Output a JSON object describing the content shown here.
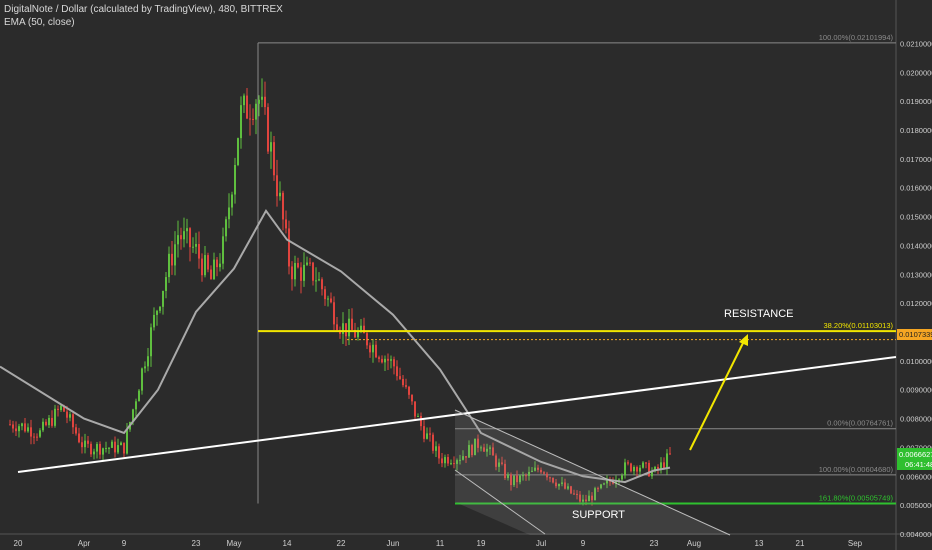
{
  "header": {
    "symbol_line": "DigitalNote / Dollar (calculated by TradingView), 480, BITTREX",
    "indicator_line": "EMA (50, close)"
  },
  "colors": {
    "background": "#2b2b2b",
    "up_candle": "#5fbf3f",
    "down_candle": "#e0443e",
    "ema": "#a9a9a9",
    "resistance": "#f2e600",
    "support": "#2fc12f",
    "trendline": "#ffffff",
    "arrow": "#f2e600",
    "current_price_tag": "#2fbf2f",
    "prev_price_tag": "#f5a623",
    "fib_line": "#8a8a8a"
  },
  "chart_data": {
    "type": "candlestick",
    "title": "DigitalNote / Dollar (calculated by TradingView), 480, BITTREX",
    "indicator": "EMA (50, close)",
    "ylim": [
      0.004,
      0.0215
    ],
    "y_ticks": [
      "0.02100000",
      "0.02000000",
      "0.01900000",
      "0.01800000",
      "0.01700000",
      "0.01600000",
      "0.01500000",
      "0.01400000",
      "0.01300000",
      "0.01200000",
      "0.01100000",
      "0.01000000",
      "0.00900000",
      "0.00800000",
      "0.00700000",
      "0.00600000",
      "0.00500000",
      "0.00400000"
    ],
    "x_ticks": [
      "20",
      "Apr",
      "9",
      "23",
      "May",
      "14",
      "22",
      "Jun",
      "11",
      "19",
      "Jul",
      "9",
      "23",
      "Aug",
      "13",
      "21",
      "Sep"
    ],
    "price_path": [
      [
        "20",
        0.0078
      ],
      [
        "24",
        0.0075
      ],
      [
        "28",
        0.0084
      ],
      [
        "Apr",
        0.007
      ],
      [
        "9",
        0.007
      ],
      [
        "13",
        0.0098
      ],
      [
        "16",
        0.012
      ],
      [
        "19",
        0.0144
      ],
      [
        "23",
        0.0138
      ],
      [
        "26",
        0.0128
      ],
      [
        "29",
        0.014
      ],
      [
        "May",
        0.0185
      ],
      [
        "5",
        0.0192
      ],
      [
        "8",
        0.0175
      ],
      [
        "10",
        0.0155
      ],
      [
        "14",
        0.0132
      ],
      [
        "18",
        0.013
      ],
      [
        "22",
        0.0112
      ],
      [
        "Jun",
        0.0108
      ],
      [
        "5",
        0.0098
      ],
      [
        "9",
        0.0078
      ],
      [
        "11",
        0.0066
      ],
      [
        "15",
        0.0067
      ],
      [
        "19",
        0.0072
      ],
      [
        "23",
        0.0058
      ],
      [
        "27",
        0.006
      ],
      [
        "Jul",
        0.0063
      ],
      [
        "5",
        0.0057
      ],
      [
        "9",
        0.0051
      ],
      [
        "13",
        0.0056
      ],
      [
        "17",
        0.0063
      ],
      [
        "20",
        0.0064
      ],
      [
        "23",
        0.0061
      ],
      [
        "26",
        0.0067
      ]
    ],
    "ema_path": [
      [
        "20",
        0.0098
      ],
      [
        "Apr",
        0.008
      ],
      [
        "9",
        0.0075
      ],
      [
        "16",
        0.009
      ],
      [
        "23",
        0.0117
      ],
      [
        "May",
        0.0132
      ],
      [
        "8",
        0.0152
      ],
      [
        "14",
        0.0142
      ],
      [
        "22",
        0.0131
      ],
      [
        "Jun",
        0.0116
      ],
      [
        "11",
        0.0097
      ],
      [
        "19",
        0.0075
      ],
      [
        "Jul",
        0.0065
      ],
      [
        "9",
        0.006
      ],
      [
        "17",
        0.0058
      ],
      [
        "23",
        0.0062
      ],
      [
        "26",
        0.0063
      ]
    ],
    "fibonacci": [
      {
        "label": "100.00%(0.02101994)",
        "value": 0.02101994
      },
      {
        "label": "38.20%(0.01103013)",
        "value": 0.01103013
      },
      {
        "label": "0.00%(0.00764761)",
        "value": 0.00764761
      },
      {
        "label": "100.00%(0.00604680)",
        "value": 0.0060468
      },
      {
        "label": "161.80%(0.00505749)",
        "value": 0.00505749
      }
    ],
    "annotations": {
      "resistance": "RESISTANCE",
      "support": "SUPPORT"
    },
    "current_price": "0.00666274",
    "countdown": "06:41:48",
    "prev_price_tag": "0.01073392"
  }
}
